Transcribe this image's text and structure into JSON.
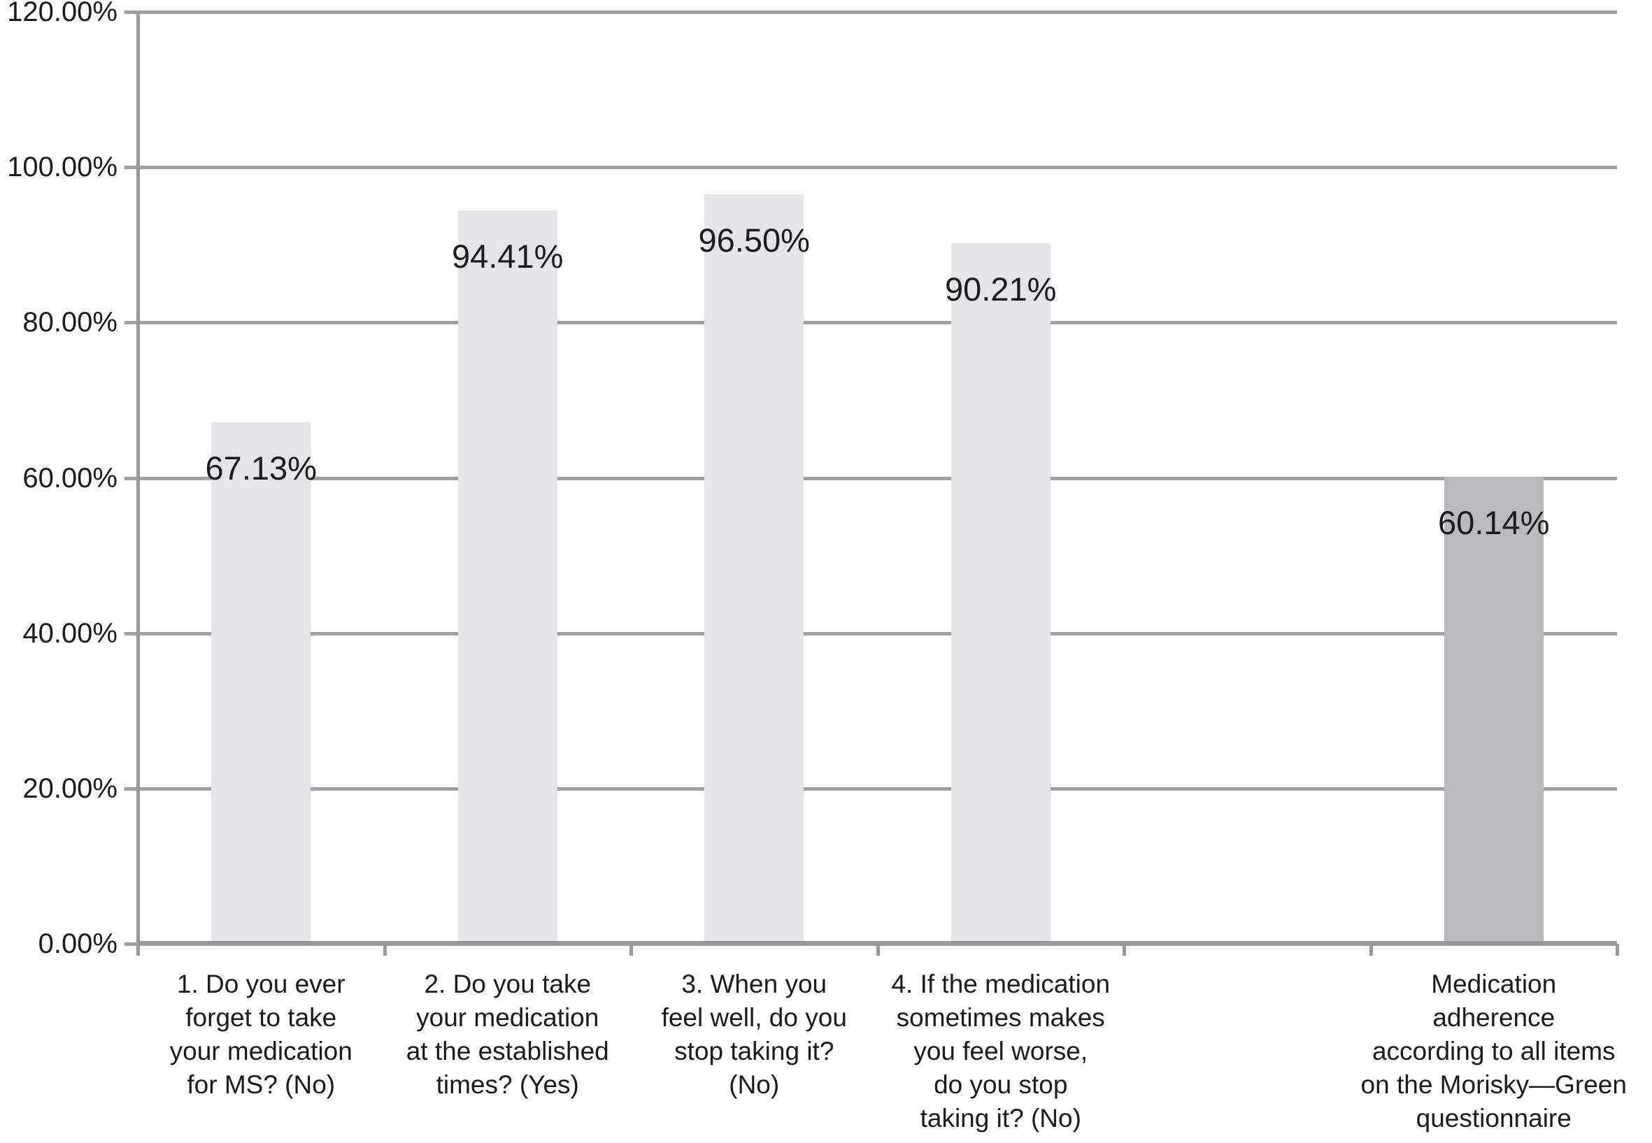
{
  "chart_data": {
    "type": "bar",
    "title": "",
    "xlabel": "",
    "ylabel": "",
    "ylim": [
      0,
      120
    ],
    "ytick_step": 20,
    "grid": true,
    "legend": "none",
    "ytick_labels": [
      "0.00%",
      "20.00%",
      "40.00%",
      "60.00%",
      "80.00%",
      "100.00%",
      "120.00%"
    ],
    "categories": [
      "1. Do you ever forget to take your medication for MS? (No)",
      "2. Do you take your medication at the established times? (Yes)",
      "3. When you feel well, do you stop taking it? (No)",
      "4. If the medication sometimes makes you feel worse, do you stop taking it? (No)",
      "",
      "Medication adherence according to all items on the Morisky—Green questionnaire"
    ],
    "category_lines": [
      [
        "1. Do you ever",
        "forget to take",
        "your medication",
        "for MS? (No)"
      ],
      [
        "2. Do you take",
        "your medication",
        "at the established",
        "times? (Yes)"
      ],
      [
        "3. When you",
        "feel well, do you",
        "stop taking it?",
        "(No)"
      ],
      [
        "4. If the medication",
        "sometimes makes",
        "you feel worse,",
        "do you stop",
        "taking it? (No)"
      ],
      [],
      [
        "Medication",
        "adherence",
        "according to all items",
        "on the Morisky—Green",
        "questionnaire"
      ]
    ],
    "values": [
      67.13,
      94.41,
      96.5,
      90.21,
      null,
      60.14
    ],
    "data_labels": [
      "67.13%",
      "94.41%",
      "96.50%",
      "90.21%",
      "",
      "60.14%"
    ],
    "bar_colors": [
      "#e4e5e7",
      "#e4e5e7",
      "#e4e5e7",
      "#e4e5e7",
      null,
      "#b9babc"
    ],
    "colors": {
      "bar_light": "#e4e5e7",
      "bar_dark": "#b9babc",
      "gridline": "#a1a1a3",
      "axis": "#98989a",
      "text": "#1b1b1b"
    }
  }
}
